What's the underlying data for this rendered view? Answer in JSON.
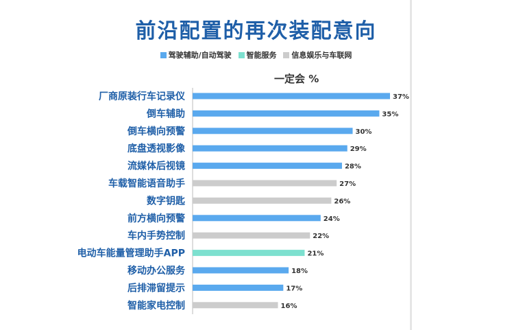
{
  "title": "前沿配置的再次装配意向",
  "subtitle": "一定会 %",
  "legend": [
    {
      "label": "驾驶辅助/自动驾驶",
      "color": "#5aa9ee"
    },
    {
      "label": "智能服务",
      "color": "#7de0cf"
    },
    {
      "label": "信息娱乐与车联网",
      "color": "#cccccc"
    }
  ],
  "chart_data": {
    "type": "bar",
    "orientation": "horizontal",
    "xlim": [
      0,
      37
    ],
    "grid": false,
    "legend_position": "top",
    "categories": [
      "厂商原装行车记录仪",
      "倒车辅助",
      "倒车横向预警",
      "底盘透视影像",
      "流媒体后视镜",
      "车载智能语音助手",
      "数字钥匙",
      "前方横向预警",
      "车内手势控制",
      "电动车能量管理助手APP",
      "移动办公服务",
      "后排滞留提示",
      "智能家电控制"
    ],
    "values": [
      37,
      35,
      30,
      29,
      28,
      27,
      26,
      24,
      22,
      21,
      18,
      17,
      16
    ],
    "value_labels": [
      "37%",
      "35%",
      "30%",
      "29%",
      "28%",
      "27%",
      "26%",
      "24%",
      "22%",
      "21%",
      "18%",
      "17%",
      "16%"
    ],
    "groups": [
      "驾驶辅助/自动驾驶",
      "驾驶辅助/自动驾驶",
      "驾驶辅助/自动驾驶",
      "驾驶辅助/自动驾驶",
      "驾驶辅助/自动驾驶",
      "信息娱乐与车联网",
      "信息娱乐与车联网",
      "驾驶辅助/自动驾驶",
      "信息娱乐与车联网",
      "智能服务",
      "驾驶辅助/自动驾驶",
      "驾驶辅助/自动驾驶",
      "信息娱乐与车联网"
    ]
  }
}
